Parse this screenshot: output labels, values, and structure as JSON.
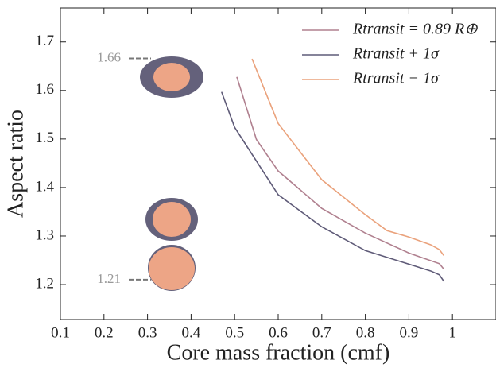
{
  "chart_data": {
    "type": "line",
    "xlabel": "Core mass fraction (cmf)",
    "ylabel": "Aspect ratio",
    "xlim": [
      0.1,
      1.1
    ],
    "ylim": [
      1.128,
      1.77
    ],
    "xticks": [
      0.1,
      0.2,
      0.3,
      0.4,
      0.5,
      0.6,
      0.7,
      0.8,
      0.9,
      1.0
    ],
    "yticks": [
      1.2,
      1.3,
      1.4,
      1.5,
      1.6,
      1.7
    ],
    "series": [
      {
        "name": "Rtransit = 0.89 R⊕",
        "color": "#b0808f",
        "x": [
          0.505,
          0.55,
          0.6,
          0.7,
          0.8,
          0.9,
          0.97,
          0.98
        ],
        "values": [
          1.628,
          1.499,
          1.434,
          1.357,
          1.306,
          1.265,
          1.243,
          1.232
        ]
      },
      {
        "name": "Rtransit + 1σ",
        "color": "#5f5b78",
        "x": [
          0.47,
          0.5,
          0.6,
          0.7,
          0.8,
          0.9,
          0.95,
          0.97,
          0.98
        ],
        "values": [
          1.597,
          1.524,
          1.385,
          1.319,
          1.27,
          1.242,
          1.228,
          1.22,
          1.207
        ]
      },
      {
        "name": "Rtransit − 1σ",
        "color": "#eaa27c",
        "x": [
          0.54,
          0.6,
          0.7,
          0.8,
          0.85,
          0.9,
          0.95,
          0.97,
          0.98
        ],
        "values": [
          1.665,
          1.532,
          1.416,
          1.344,
          1.311,
          1.298,
          1.282,
          1.272,
          1.26
        ]
      }
    ],
    "annotations": [
      {
        "label": "1.66",
        "y": 1.666
      },
      {
        "label": "1.21",
        "y": 1.21
      }
    ]
  }
}
